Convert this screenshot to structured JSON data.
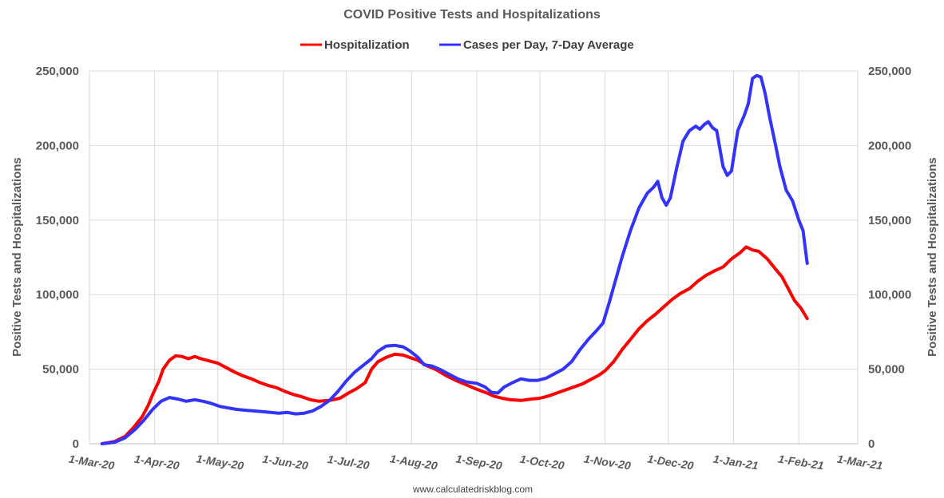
{
  "chart_data": {
    "type": "line",
    "title": "COVID Positive Tests and Hospitalizations",
    "source": "www.calculatedriskblog.com",
    "ylabel_left": "Positive Tests and Hospitalizations",
    "ylabel_right": "Positive Tests and Hospitalizations",
    "ylim": [
      0,
      250000
    ],
    "y_ticks": [
      {
        "value": 0,
        "label": "0"
      },
      {
        "value": 50000,
        "label": "50,000"
      },
      {
        "value": 100000,
        "label": "100,000"
      },
      {
        "value": 150000,
        "label": "150,000"
      },
      {
        "value": 200000,
        "label": "200,000"
      },
      {
        "value": 250000,
        "label": "250,000"
      }
    ],
    "x_range_days": [
      0,
      365
    ],
    "x_ticks": [
      {
        "day": 0,
        "label": "1-Mar-20"
      },
      {
        "day": 31,
        "label": "1-Apr-20"
      },
      {
        "day": 61,
        "label": "1-May-20"
      },
      {
        "day": 92,
        "label": "1-Jun-20"
      },
      {
        "day": 122,
        "label": "1-Jul-20"
      },
      {
        "day": 153,
        "label": "1-Aug-20"
      },
      {
        "day": 184,
        "label": "1-Sep-20"
      },
      {
        "day": 214,
        "label": "1-Oct-20"
      },
      {
        "day": 245,
        "label": "1-Nov-20"
      },
      {
        "day": 275,
        "label": "1-Dec-20"
      },
      {
        "day": 306,
        "label": "1-Jan-21"
      },
      {
        "day": 337,
        "label": "1-Feb-21"
      },
      {
        "day": 365,
        "label": "1-Mar-21"
      }
    ],
    "series": [
      {
        "name": "Hospitalization",
        "color": "#ff0000",
        "points": [
          [
            6,
            0
          ],
          [
            12,
            1500
          ],
          [
            17,
            5000
          ],
          [
            21,
            11000
          ],
          [
            25,
            18000
          ],
          [
            28,
            26000
          ],
          [
            30,
            33000
          ],
          [
            33,
            42000
          ],
          [
            35,
            50000
          ],
          [
            38,
            56000
          ],
          [
            41,
            59000
          ],
          [
            44,
            58500
          ],
          [
            47,
            57000
          ],
          [
            50,
            58500
          ],
          [
            53,
            57000
          ],
          [
            57,
            55500
          ],
          [
            61,
            54000
          ],
          [
            65,
            51000
          ],
          [
            69,
            48000
          ],
          [
            73,
            45500
          ],
          [
            77,
            43500
          ],
          [
            81,
            41000
          ],
          [
            85,
            39000
          ],
          [
            89,
            37500
          ],
          [
            93,
            35000
          ],
          [
            97,
            33000
          ],
          [
            101,
            31500
          ],
          [
            105,
            29500
          ],
          [
            109,
            28500
          ],
          [
            114,
            29000
          ],
          [
            119,
            30500
          ],
          [
            123,
            34000
          ],
          [
            127,
            37000
          ],
          [
            131,
            41000
          ],
          [
            134,
            50000
          ],
          [
            137,
            55000
          ],
          [
            141,
            58000
          ],
          [
            145,
            60000
          ],
          [
            149,
            59500
          ],
          [
            152,
            58000
          ],
          [
            156,
            56000
          ],
          [
            160,
            52500
          ],
          [
            165,
            49500
          ],
          [
            169,
            46000
          ],
          [
            174,
            42500
          ],
          [
            179,
            39500
          ],
          [
            184,
            36500
          ],
          [
            188,
            34500
          ],
          [
            192,
            32000
          ],
          [
            196,
            30500
          ],
          [
            200,
            29500
          ],
          [
            205,
            29000
          ],
          [
            210,
            30000
          ],
          [
            214,
            30500
          ],
          [
            218,
            32000
          ],
          [
            222,
            34000
          ],
          [
            226,
            36000
          ],
          [
            230,
            38000
          ],
          [
            234,
            40000
          ],
          [
            238,
            43000
          ],
          [
            242,
            46000
          ],
          [
            245,
            49000
          ],
          [
            249,
            55000
          ],
          [
            253,
            63000
          ],
          [
            257,
            70000
          ],
          [
            261,
            77000
          ],
          [
            265,
            82500
          ],
          [
            269,
            87000
          ],
          [
            273,
            92000
          ],
          [
            277,
            97000
          ],
          [
            281,
            101000
          ],
          [
            285,
            104000
          ],
          [
            289,
            109000
          ],
          [
            293,
            113000
          ],
          [
            297,
            116000
          ],
          [
            301,
            118500
          ],
          [
            305,
            124000
          ],
          [
            309,
            128000
          ],
          [
            312,
            132000
          ],
          [
            315,
            130000
          ],
          [
            318,
            129000
          ],
          [
            322,
            124000
          ],
          [
            326,
            117000
          ],
          [
            329,
            112000
          ],
          [
            332,
            104000
          ],
          [
            335,
            96000
          ],
          [
            338,
            91000
          ],
          [
            341,
            84000
          ]
        ]
      },
      {
        "name": "Cases per Day, 7-Day Average",
        "color": "#3333ff",
        "points": [
          [
            6,
            0
          ],
          [
            12,
            1000
          ],
          [
            17,
            4000
          ],
          [
            22,
            10000
          ],
          [
            26,
            16000
          ],
          [
            30,
            23000
          ],
          [
            34,
            28500
          ],
          [
            38,
            31000
          ],
          [
            42,
            30000
          ],
          [
            46,
            28500
          ],
          [
            50,
            29500
          ],
          [
            54,
            28500
          ],
          [
            58,
            27000
          ],
          [
            62,
            25000
          ],
          [
            66,
            24000
          ],
          [
            70,
            23000
          ],
          [
            74,
            22500
          ],
          [
            78,
            22000
          ],
          [
            82,
            21500
          ],
          [
            86,
            21000
          ],
          [
            90,
            20500
          ],
          [
            94,
            21000
          ],
          [
            98,
            20000
          ],
          [
            102,
            20500
          ],
          [
            106,
            22000
          ],
          [
            110,
            25000
          ],
          [
            114,
            29000
          ],
          [
            118,
            35000
          ],
          [
            122,
            42000
          ],
          [
            126,
            48000
          ],
          [
            130,
            52500
          ],
          [
            134,
            57000
          ],
          [
            137,
            62000
          ],
          [
            141,
            65500
          ],
          [
            145,
            66000
          ],
          [
            149,
            65000
          ],
          [
            152,
            62500
          ],
          [
            156,
            58000
          ],
          [
            159,
            53000
          ],
          [
            163,
            52000
          ],
          [
            167,
            49500
          ],
          [
            171,
            46500
          ],
          [
            175,
            43500
          ],
          [
            179,
            41500
          ],
          [
            184,
            40500
          ],
          [
            188,
            38000
          ],
          [
            191,
            34500
          ],
          [
            194,
            34000
          ],
          [
            197,
            38000
          ],
          [
            201,
            41000
          ],
          [
            205,
            43500
          ],
          [
            209,
            42500
          ],
          [
            213,
            42500
          ],
          [
            217,
            44000
          ],
          [
            221,
            47000
          ],
          [
            225,
            50000
          ],
          [
            229,
            55000
          ],
          [
            233,
            63000
          ],
          [
            237,
            70000
          ],
          [
            241,
            76000
          ],
          [
            244,
            81000
          ],
          [
            247,
            95000
          ],
          [
            250,
            110000
          ],
          [
            253,
            125000
          ],
          [
            257,
            143000
          ],
          [
            261,
            158000
          ],
          [
            265,
            168000
          ],
          [
            268,
            172000
          ],
          [
            270,
            176000
          ],
          [
            272,
            165000
          ],
          [
            274,
            160000
          ],
          [
            276,
            165000
          ],
          [
            279,
            185000
          ],
          [
            282,
            203000
          ],
          [
            285,
            210000
          ],
          [
            288,
            213000
          ],
          [
            290,
            211000
          ],
          [
            292,
            214000
          ],
          [
            294,
            216000
          ],
          [
            296,
            212000
          ],
          [
            298,
            210000
          ],
          [
            301,
            186000
          ],
          [
            303,
            180000
          ],
          [
            305,
            183000
          ],
          [
            308,
            210000
          ],
          [
            311,
            220000
          ],
          [
            313,
            228000
          ],
          [
            315,
            245000
          ],
          [
            317,
            247000
          ],
          [
            319,
            246000
          ],
          [
            321,
            235000
          ],
          [
            323,
            220000
          ],
          [
            326,
            200000
          ],
          [
            328,
            186000
          ],
          [
            331,
            170000
          ],
          [
            334,
            163000
          ],
          [
            337,
            150000
          ],
          [
            339,
            143000
          ],
          [
            341,
            121000
          ]
        ]
      }
    ]
  }
}
